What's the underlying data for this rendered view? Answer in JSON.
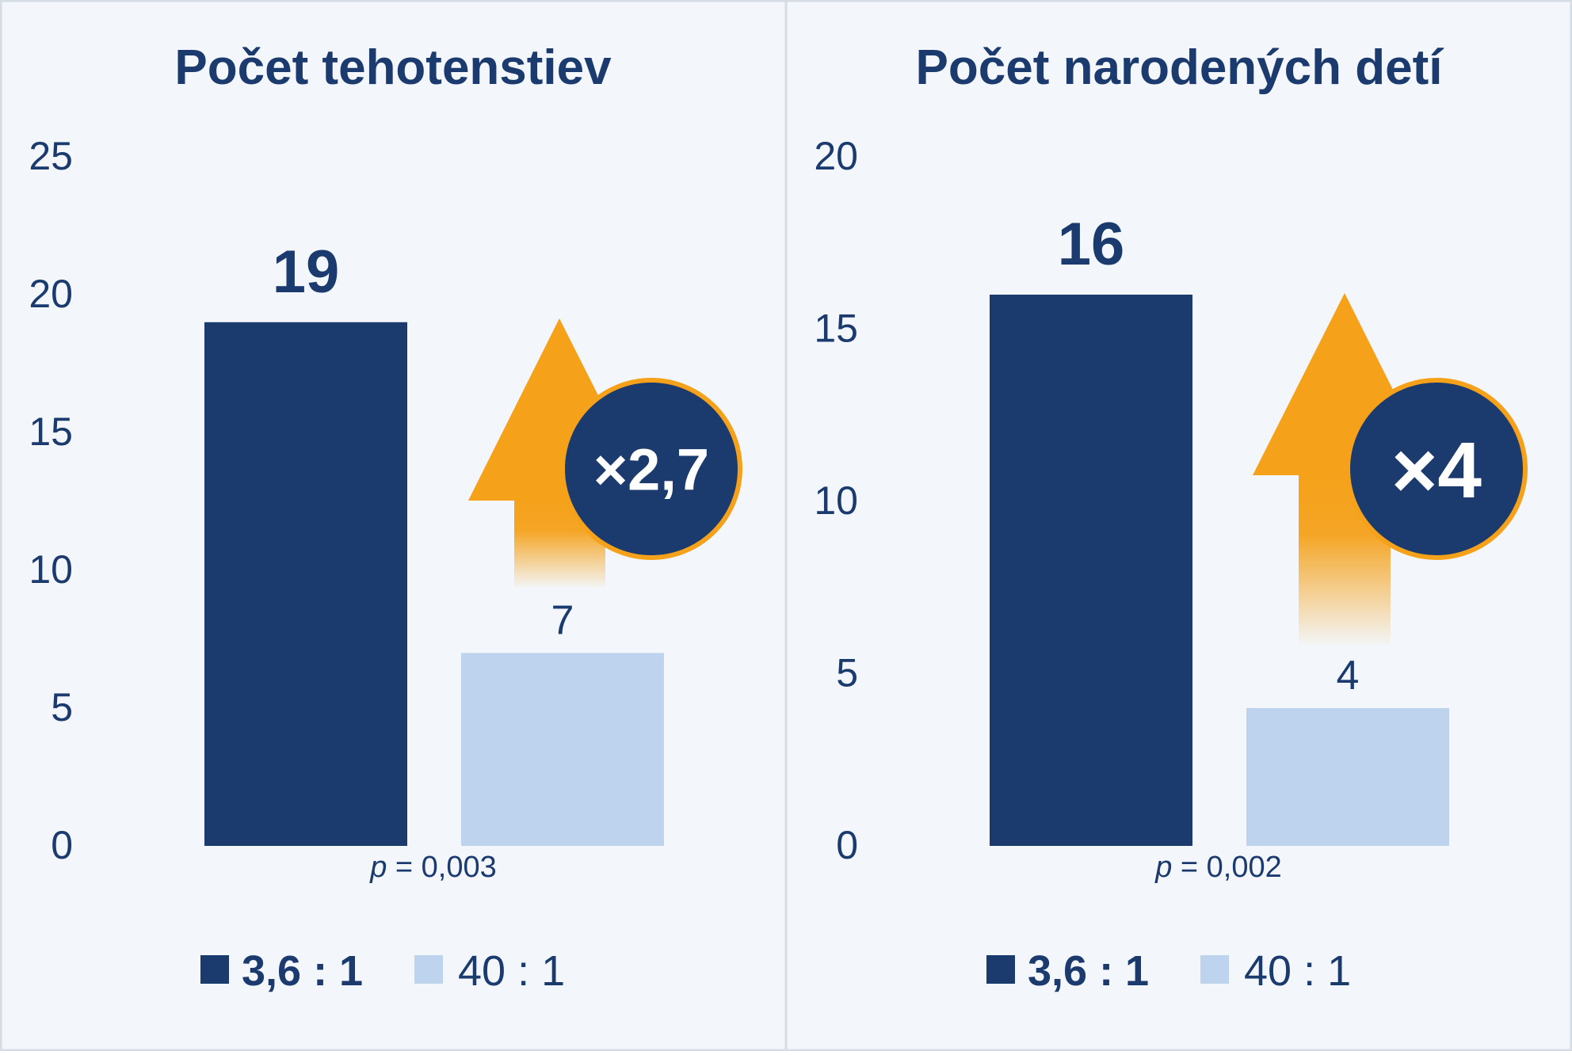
{
  "colors": {
    "background": "#f3f7fc",
    "border": "#d6dce4",
    "series_dark": "#1b3a6e",
    "series_light": "#bdd3ee",
    "text": "#1b3a6e",
    "accent_orange": "#f5a11a"
  },
  "chart_data": [
    {
      "type": "bar",
      "title": "Počet tehotenstiev",
      "categories": [
        "3,6 : 1",
        "40 : 1"
      ],
      "values": [
        19,
        7
      ],
      "value_labels": [
        "19",
        "7"
      ],
      "ylim": [
        0,
        25
      ],
      "yticks": [
        "0",
        "5",
        "10",
        "15",
        "20",
        "25"
      ],
      "ytick_values": [
        0,
        5,
        10,
        15,
        20,
        25
      ],
      "annotation": "×2,7",
      "p_label": "p",
      "p_value": " = 0,003",
      "legend": [
        {
          "label": "3,6 : 1",
          "color": "#1b3a6e"
        },
        {
          "label": "40 : 1",
          "color": "#bdd3ee"
        }
      ],
      "legend_position": "bottom",
      "grid": false
    },
    {
      "type": "bar",
      "title": "Počet narodených detí",
      "categories": [
        "3,6 : 1",
        "40 : 1"
      ],
      "values": [
        16,
        4
      ],
      "value_labels": [
        "16",
        "4"
      ],
      "ylim": [
        0,
        20
      ],
      "yticks": [
        "0",
        "5",
        "10",
        "15",
        "20"
      ],
      "ytick_values": [
        0,
        5,
        10,
        15,
        20
      ],
      "annotation": "×4",
      "p_label": "p",
      "p_value": " = 0,002",
      "legend": [
        {
          "label": "3,6 : 1",
          "color": "#1b3a6e"
        },
        {
          "label": "40 : 1",
          "color": "#bdd3ee"
        }
      ],
      "legend_position": "bottom",
      "grid": false
    }
  ]
}
